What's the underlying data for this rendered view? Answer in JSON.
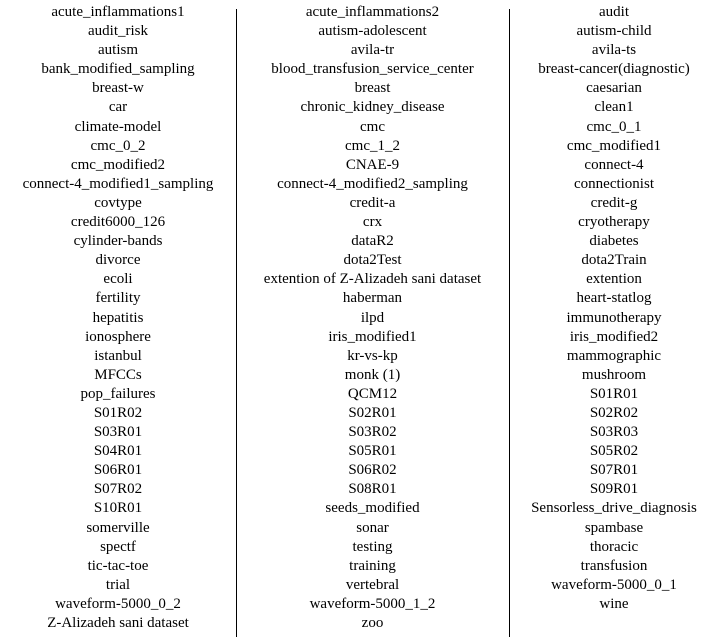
{
  "columns": [
    [
      "acute_inflammations1",
      "audit_risk",
      "autism",
      "bank_modified_sampling",
      "breast-w",
      "car",
      "climate-model",
      "cmc_0_2",
      "cmc_modified2",
      "connect-4_modified1_sampling",
      "covtype",
      "credit6000_126",
      "cylinder-bands",
      "divorce",
      "ecoli",
      "fertility",
      "hepatitis",
      "ionosphere",
      "istanbul",
      "MFCCs",
      "pop_failures",
      "S01R02",
      "S03R01",
      "S04R01",
      "S06R01",
      "S07R02",
      "S10R01",
      "somerville",
      "spectf",
      "tic-tac-toe",
      "trial",
      "waveform-5000_0_2",
      "Z-Alizadeh sani dataset"
    ],
    [
      "acute_inflammations2",
      "autism-adolescent",
      "avila-tr",
      "blood_transfusion_service_center",
      "breast",
      "chronic_kidney_disease",
      "cmc",
      "cmc_1_2",
      "CNAE-9",
      "connect-4_modified2_sampling",
      "credit-a",
      "crx",
      "dataR2",
      "dota2Test",
      "extention of Z-Alizadeh sani dataset",
      "haberman",
      "ilpd",
      "iris_modified1",
      "kr-vs-kp",
      "monk (1)",
      "QCM12",
      "S02R01",
      "S03R02",
      "S05R01",
      "S06R02",
      "S08R01",
      "seeds_modified",
      "sonar",
      "testing",
      "training",
      "vertebral",
      "waveform-5000_1_2",
      "zoo"
    ],
    [
      "audit",
      "autism-child",
      "avila-ts",
      "breast-cancer(diagnostic)",
      "caesarian",
      "clean1",
      "cmc_0_1",
      "cmc_modified1",
      "connect-4",
      "connectionist",
      "credit-g",
      "cryotherapy",
      "diabetes",
      "dota2Train",
      "extention",
      "heart-statlog",
      "immunotherapy",
      "iris_modified2",
      "mammographic",
      "mushroom",
      "S01R01",
      "S02R02",
      "S03R03",
      "S05R02",
      "S07R01",
      "S09R01",
      "Sensorless_drive_diagnosis",
      "spambase",
      "thoracic",
      "transfusion",
      "waveform-5000_0_1",
      "wine"
    ]
  ]
}
